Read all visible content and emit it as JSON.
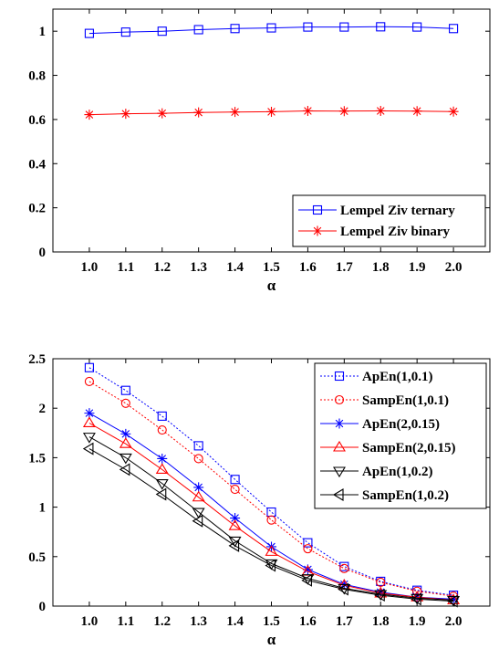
{
  "chart_data": [
    {
      "type": "line",
      "title": "",
      "xlabel": "α",
      "ylabel": "",
      "x": [
        1.0,
        1.1,
        1.2,
        1.3,
        1.4,
        1.5,
        1.6,
        1.7,
        1.8,
        1.9,
        2.0
      ],
      "x_tick_labels": [
        "1.0",
        "1.1",
        "1.2",
        "1.3",
        "1.4",
        "1.5",
        "1.6",
        "1.7",
        "1.8",
        "1.9",
        "2.0"
      ],
      "xlim": [
        0.9,
        2.1
      ],
      "ylim": [
        0,
        1.1
      ],
      "y_ticks": [
        0,
        0.2,
        0.4,
        0.6,
        0.8,
        1
      ],
      "y_tick_labels": [
        "0",
        "0.2",
        "0.4",
        "0.6",
        "0.8",
        "1"
      ],
      "grid": false,
      "legend_position": "bottom-right",
      "series": [
        {
          "name": "Lempel Ziv ternary",
          "color": "#0000ff",
          "marker": "square",
          "line": "solid",
          "values": [
            0.99,
            0.996,
            1.0,
            1.007,
            1.012,
            1.015,
            1.019,
            1.019,
            1.02,
            1.019,
            1.012
          ]
        },
        {
          "name": "Lempel Ziv binary",
          "color": "#ff0000",
          "marker": "star",
          "line": "solid",
          "values": [
            0.622,
            0.626,
            0.628,
            0.632,
            0.634,
            0.635,
            0.639,
            0.638,
            0.639,
            0.638,
            0.636
          ]
        }
      ]
    },
    {
      "type": "line",
      "title": "",
      "xlabel": "α",
      "ylabel": "",
      "x": [
        1.0,
        1.1,
        1.2,
        1.3,
        1.4,
        1.5,
        1.6,
        1.7,
        1.8,
        1.9,
        2.0
      ],
      "x_tick_labels": [
        "1.0",
        "1.1",
        "1.2",
        "1.3",
        "1.4",
        "1.5",
        "1.6",
        "1.7",
        "1.8",
        "1.9",
        "2.0"
      ],
      "xlim": [
        0.9,
        2.1
      ],
      "ylim": [
        0,
        2.5
      ],
      "y_ticks": [
        0,
        0.5,
        1,
        1.5,
        2,
        2.5
      ],
      "y_tick_labels": [
        "0",
        "0.5",
        "1",
        "1.5",
        "2",
        "2.5"
      ],
      "grid": false,
      "legend_position": "top-right",
      "series": [
        {
          "name": "ApEn(1,0.1)",
          "color": "#0000ff",
          "marker": "square",
          "line": "dotted",
          "values": [
            2.41,
            2.18,
            1.92,
            1.62,
            1.28,
            0.95,
            0.64,
            0.4,
            0.25,
            0.16,
            0.11
          ]
        },
        {
          "name": "SampEn(1,0.1)",
          "color": "#ff0000",
          "marker": "circle",
          "line": "dotted",
          "values": [
            2.27,
            2.05,
            1.78,
            1.49,
            1.18,
            0.87,
            0.58,
            0.38,
            0.24,
            0.15,
            0.1
          ]
        },
        {
          "name": "ApEn(2,0.15)",
          "color": "#0000ff",
          "marker": "star",
          "line": "solid",
          "values": [
            1.95,
            1.74,
            1.49,
            1.2,
            0.89,
            0.6,
            0.37,
            0.22,
            0.14,
            0.09,
            0.07
          ]
        },
        {
          "name": "SampEn(2,0.15)",
          "color": "#ff0000",
          "marker": "triangle-up",
          "line": "solid",
          "values": [
            1.85,
            1.64,
            1.38,
            1.1,
            0.81,
            0.55,
            0.35,
            0.21,
            0.13,
            0.09,
            0.06
          ]
        },
        {
          "name": "ApEn(1,0.2)",
          "color": "#000000",
          "marker": "triangle-down",
          "line": "solid",
          "values": [
            1.71,
            1.5,
            1.24,
            0.95,
            0.66,
            0.43,
            0.28,
            0.18,
            0.12,
            0.08,
            0.06
          ]
        },
        {
          "name": "SampEn(1,0.2)",
          "color": "#000000",
          "marker": "triangle-left",
          "line": "solid",
          "values": [
            1.59,
            1.38,
            1.13,
            0.86,
            0.61,
            0.41,
            0.26,
            0.17,
            0.11,
            0.07,
            0.05
          ]
        }
      ]
    }
  ]
}
